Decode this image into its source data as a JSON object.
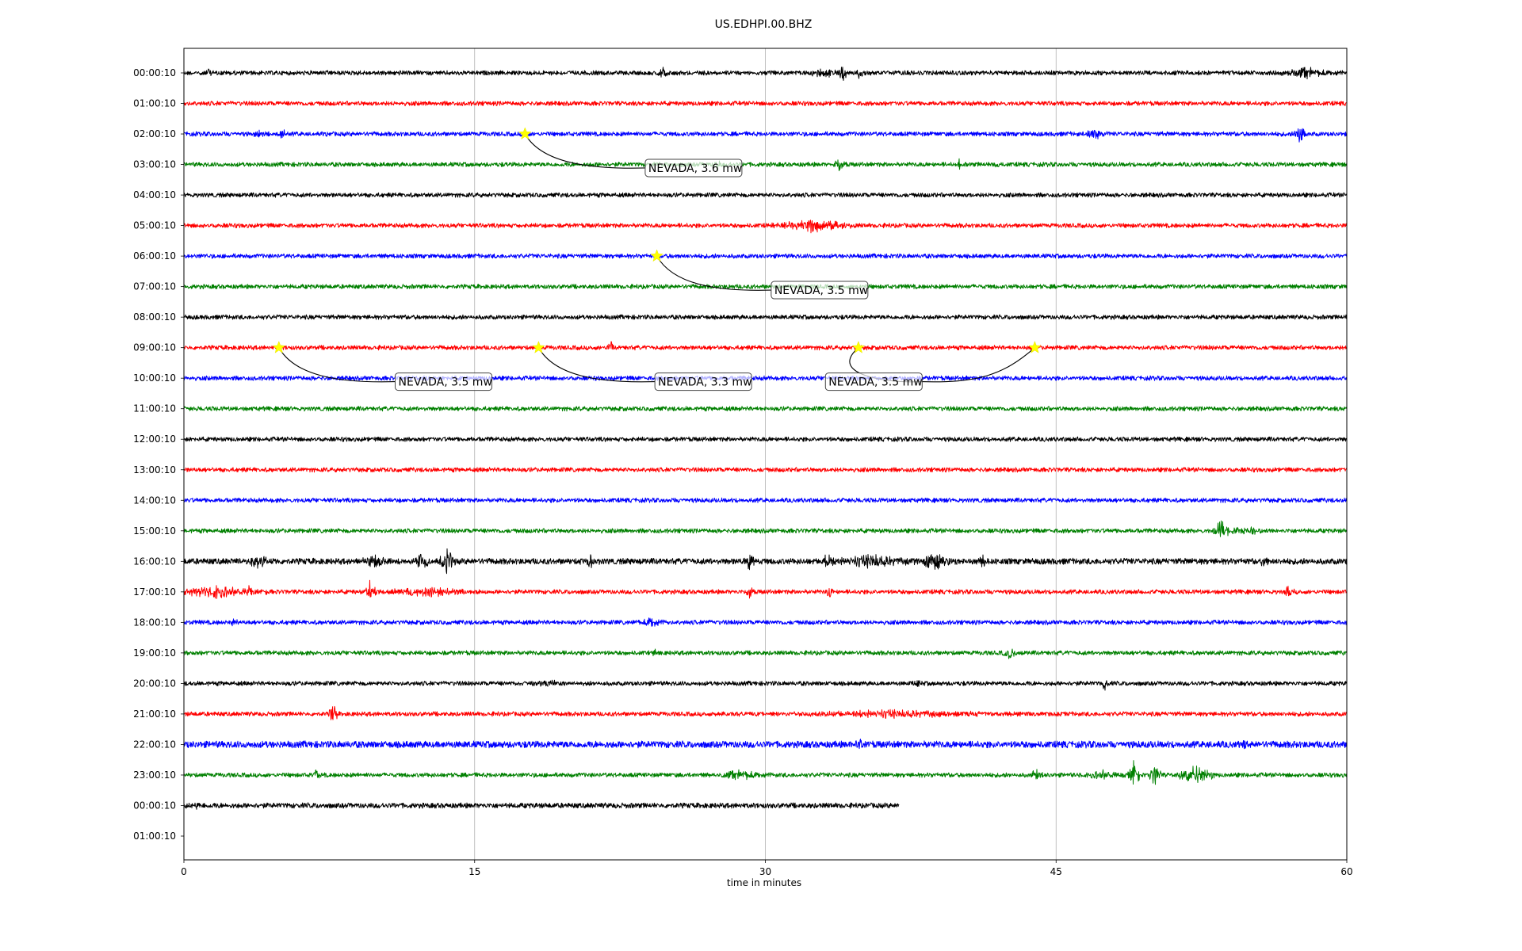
{
  "chart_data": {
    "type": "line",
    "title": "US.EDHPI.00.BHZ",
    "xlabel": "time in minutes",
    "ylabel": "",
    "xlim": [
      0,
      60
    ],
    "x_ticks": [
      0,
      15,
      30,
      45,
      60
    ],
    "grid": "vertical lines at x ticks",
    "colors": [
      "#000000",
      "#ff0000",
      "#0000ff",
      "#008000"
    ],
    "row_labels": [
      "00:00:10",
      "01:00:10",
      "02:00:10",
      "03:00:10",
      "04:00:10",
      "05:00:10",
      "06:00:10",
      "07:00:10",
      "08:00:10",
      "09:00:10",
      "10:00:10",
      "11:00:10",
      "12:00:10",
      "13:00:10",
      "14:00:10",
      "15:00:10",
      "16:00:10",
      "17:00:10",
      "18:00:10",
      "19:00:10",
      "20:00:10",
      "21:00:10",
      "22:00:10",
      "23:00:10",
      "00:00:10",
      "01:00:10"
    ],
    "traces": [
      {
        "row": 0,
        "color": "#000000",
        "x_end": 60,
        "amp": 2.5,
        "bursts": [
          {
            "x": 1.2,
            "w": 0.6,
            "a": 6
          },
          {
            "x": 24.7,
            "w": 0.3,
            "a": 10
          },
          {
            "x": 33.0,
            "w": 1.3,
            "a": 7
          },
          {
            "x": 34.0,
            "w": 0.2,
            "a": 17
          },
          {
            "x": 34.8,
            "w": 0.4,
            "a": 9
          },
          {
            "x": 58.0,
            "w": 1.8,
            "a": 8
          }
        ]
      },
      {
        "row": 1,
        "color": "#ff0000",
        "x_end": 60,
        "amp": 2.5,
        "bursts": []
      },
      {
        "row": 2,
        "color": "#0000ff",
        "x_end": 60,
        "amp": 2.5,
        "bursts": [
          {
            "x": 3.9,
            "w": 0.4,
            "a": 8
          },
          {
            "x": 5.1,
            "w": 0.4,
            "a": 7
          },
          {
            "x": 7.4,
            "w": 0.2,
            "a": 4
          },
          {
            "x": 46.9,
            "w": 0.8,
            "a": 9
          },
          {
            "x": 57.6,
            "w": 0.3,
            "a": 14
          }
        ]
      },
      {
        "row": 3,
        "color": "#008000",
        "x_end": 60,
        "amp": 2.5,
        "bursts": [
          {
            "x": 27.5,
            "w": 0.2,
            "a": 16
          },
          {
            "x": 33.8,
            "w": 0.4,
            "a": 10
          },
          {
            "x": 40.0,
            "w": 0.3,
            "a": 7
          },
          {
            "x": 42.0,
            "w": 0.3,
            "a": 6
          }
        ]
      },
      {
        "row": 4,
        "color": "#000000",
        "x_end": 60,
        "amp": 2.5,
        "bursts": []
      },
      {
        "row": 5,
        "color": "#ff0000",
        "x_end": 60,
        "amp": 2.5,
        "bursts": [
          {
            "x": 32.5,
            "w": 2.2,
            "a": 10
          }
        ]
      },
      {
        "row": 6,
        "color": "#0000ff",
        "x_end": 60,
        "amp": 2.5,
        "bursts": []
      },
      {
        "row": 7,
        "color": "#008000",
        "x_end": 60,
        "amp": 2.5,
        "bursts": []
      },
      {
        "row": 8,
        "color": "#000000",
        "x_end": 60,
        "amp": 2.5,
        "bursts": []
      },
      {
        "row": 9,
        "color": "#ff0000",
        "x_end": 60,
        "amp": 2.5,
        "bursts": [
          {
            "x": 22.0,
            "w": 0.2,
            "a": 11
          }
        ]
      },
      {
        "row": 10,
        "color": "#0000ff",
        "x_end": 60,
        "amp": 2.5,
        "bursts": []
      },
      {
        "row": 11,
        "color": "#008000",
        "x_end": 60,
        "amp": 2.5,
        "bursts": []
      },
      {
        "row": 12,
        "color": "#000000",
        "x_end": 60,
        "amp": 2.5,
        "bursts": []
      },
      {
        "row": 13,
        "color": "#ff0000",
        "x_end": 60,
        "amp": 2.5,
        "bursts": []
      },
      {
        "row": 14,
        "color": "#0000ff",
        "x_end": 60,
        "amp": 2.5,
        "bursts": []
      },
      {
        "row": 15,
        "color": "#008000",
        "x_end": 60,
        "amp": 2.5,
        "bursts": [
          {
            "x": 53.5,
            "w": 0.4,
            "a": 18
          },
          {
            "x": 54.8,
            "w": 1.8,
            "a": 6
          }
        ]
      },
      {
        "row": 16,
        "color": "#000000",
        "x_end": 60,
        "amp": 3.5,
        "bursts": [
          {
            "x": 3.8,
            "w": 1.0,
            "a": 10
          },
          {
            "x": 9.8,
            "w": 1.2,
            "a": 9
          },
          {
            "x": 12.3,
            "w": 0.4,
            "a": 14
          },
          {
            "x": 13.6,
            "w": 0.4,
            "a": 18
          },
          {
            "x": 21.0,
            "w": 0.6,
            "a": 9
          },
          {
            "x": 29.2,
            "w": 0.4,
            "a": 12
          },
          {
            "x": 33.2,
            "w": 0.3,
            "a": 14
          },
          {
            "x": 35.5,
            "w": 3.0,
            "a": 10
          },
          {
            "x": 38.7,
            "w": 1.2,
            "a": 12
          },
          {
            "x": 41.2,
            "w": 0.3,
            "a": 9
          },
          {
            "x": 55.8,
            "w": 0.3,
            "a": 12
          }
        ]
      },
      {
        "row": 17,
        "color": "#ff0000",
        "x_end": 60,
        "amp": 2.5,
        "bursts": [
          {
            "x": 1.7,
            "w": 2.8,
            "a": 9
          },
          {
            "x": 3.4,
            "w": 0.2,
            "a": 12
          },
          {
            "x": 9.6,
            "w": 0.3,
            "a": 16
          },
          {
            "x": 12.6,
            "w": 3.3,
            "a": 7
          },
          {
            "x": 29.2,
            "w": 0.2,
            "a": 12
          },
          {
            "x": 33.3,
            "w": 0.2,
            "a": 14
          },
          {
            "x": 57.0,
            "w": 0.3,
            "a": 11
          }
        ]
      },
      {
        "row": 18,
        "color": "#0000ff",
        "x_end": 60,
        "amp": 2.5,
        "bursts": [
          {
            "x": 2.6,
            "w": 0.3,
            "a": 7
          },
          {
            "x": 24.1,
            "w": 0.8,
            "a": 8
          },
          {
            "x": 27.0,
            "w": 0.2,
            "a": 5
          }
        ]
      },
      {
        "row": 19,
        "color": "#008000",
        "x_end": 60,
        "amp": 2.5,
        "bursts": [
          {
            "x": 24.3,
            "w": 0.3,
            "a": 6
          },
          {
            "x": 42.6,
            "w": 0.4,
            "a": 9
          }
        ]
      },
      {
        "row": 20,
        "color": "#000000",
        "x_end": 60,
        "amp": 2.5,
        "bursts": [
          {
            "x": 19.0,
            "w": 2.0,
            "a": 5
          },
          {
            "x": 37.8,
            "w": 0.3,
            "a": 8
          },
          {
            "x": 47.5,
            "w": 0.2,
            "a": 10
          }
        ]
      },
      {
        "row": 21,
        "color": "#ff0000",
        "x_end": 60,
        "amp": 2.5,
        "bursts": [
          {
            "x": 7.7,
            "w": 0.2,
            "a": 20
          },
          {
            "x": 36.5,
            "w": 9.2,
            "a": 6
          }
        ]
      },
      {
        "row": 22,
        "color": "#0000ff",
        "x_end": 60,
        "amp": 4.0,
        "bursts": [
          {
            "x": 34.8,
            "w": 0.4,
            "a": 10
          },
          {
            "x": 54.7,
            "w": 0.3,
            "a": 7
          }
        ]
      },
      {
        "row": 23,
        "color": "#008000",
        "x_end": 60,
        "amp": 2.5,
        "bursts": [
          {
            "x": 6.8,
            "w": 0.3,
            "a": 8
          },
          {
            "x": 28.8,
            "w": 1.6,
            "a": 8
          },
          {
            "x": 44.0,
            "w": 0.3,
            "a": 12
          },
          {
            "x": 47.4,
            "w": 1.4,
            "a": 7
          },
          {
            "x": 49.0,
            "w": 0.3,
            "a": 20
          },
          {
            "x": 50.1,
            "w": 0.3,
            "a": 18
          },
          {
            "x": 52.2,
            "w": 1.0,
            "a": 14
          }
        ]
      },
      {
        "row": 24,
        "color": "#000000",
        "x_end": 36.9,
        "amp": 3.0,
        "bursts": [
          {
            "x": 0.7,
            "w": 0.4,
            "a": 6
          }
        ]
      }
    ],
    "events": [
      {
        "row": 2,
        "x": 17.6,
        "label": "NEVADA, 3.6 mw",
        "label_x": 23.8,
        "label_row": 3.14
      },
      {
        "row": 6,
        "x": 24.4,
        "label": "NEVADA, 3.5 mw",
        "label_x": 30.3,
        "label_row": 7.14
      },
      {
        "row": 9,
        "x": 4.9,
        "label": "NEVADA, 3.5 mw",
        "label_x": 10.9,
        "label_row": 10.14
      },
      {
        "row": 9,
        "x": 18.3,
        "label": "NEVADA, 3.3 mw",
        "label_x": 24.3,
        "label_row": 10.14
      },
      {
        "row": 9,
        "x": 34.8,
        "label": "NEVADA, 3.5 mw",
        "label_x": 33.1,
        "label_row": 10.14
      },
      {
        "row": 9,
        "x": 43.9,
        "label": "NEVADA, 3.5 mw",
        "label_x": 33.1,
        "label_row": 10.14
      }
    ]
  }
}
